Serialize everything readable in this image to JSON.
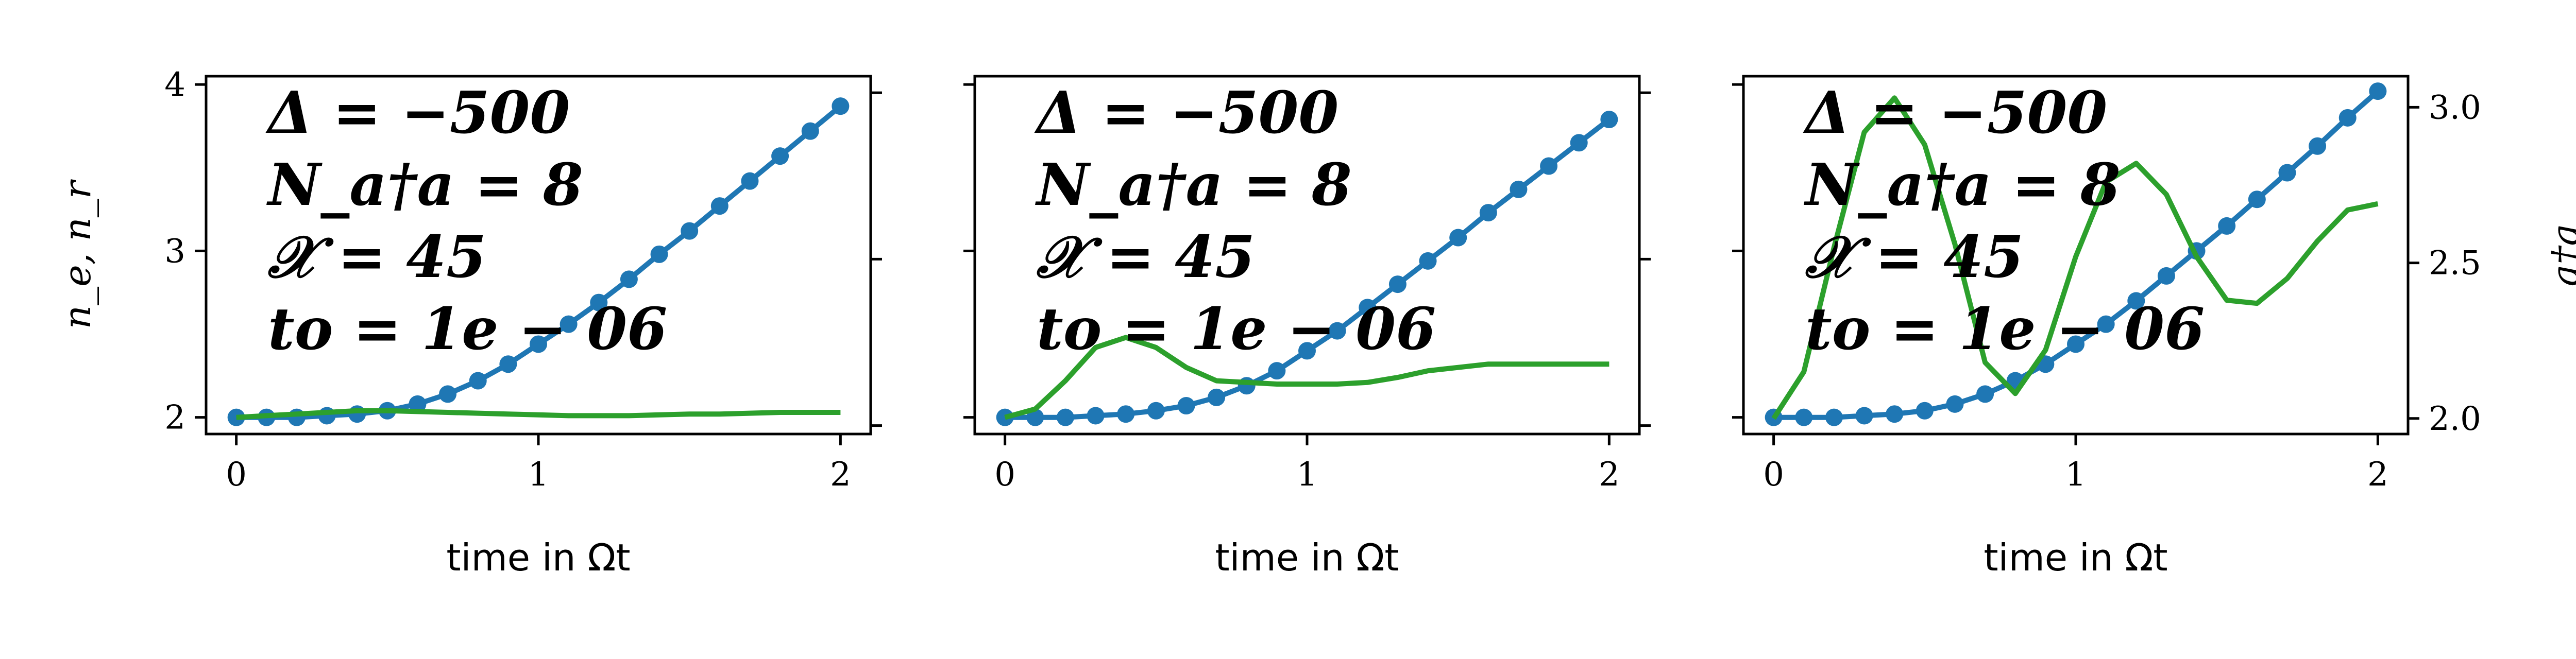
{
  "chart_data": [
    {
      "type": "line",
      "xlabel": "time in Ωt",
      "ylabel": "n_e, n_r",
      "xlim": [
        -0.1,
        2.1
      ],
      "ylim": [
        1.9,
        4.05
      ],
      "xticks": [
        "0",
        "1",
        "2"
      ],
      "yticks": [
        "2",
        "3",
        "4"
      ],
      "annotations": [
        "Δ = −500",
        "N_a†a = 8",
        "𝒳 = 45",
        "to = 1e − 06"
      ],
      "series": [
        {
          "color": "#1f77b4",
          "marker": "circle",
          "x": [
            0,
            0.1,
            0.2,
            0.3,
            0.4,
            0.5,
            0.6,
            0.7,
            0.8,
            0.9,
            1.0,
            1.1,
            1.2,
            1.3,
            1.4,
            1.5,
            1.6,
            1.7,
            1.8,
            1.9,
            2.0
          ],
          "y": [
            2.0,
            2.0,
            2.0,
            2.01,
            2.02,
            2.04,
            2.08,
            2.14,
            2.22,
            2.32,
            2.44,
            2.56,
            2.69,
            2.83,
            2.98,
            3.12,
            3.27,
            3.42,
            3.57,
            3.72,
            3.87
          ]
        },
        {
          "color": "#2ca02c",
          "x": [
            0,
            0.1,
            0.2,
            0.3,
            0.4,
            0.5,
            0.6,
            0.7,
            0.8,
            0.9,
            1.0,
            1.1,
            1.2,
            1.3,
            1.4,
            1.5,
            1.6,
            1.7,
            1.8,
            1.9,
            2.0
          ],
          "y": [
            2.0,
            2.01,
            2.02,
            2.03,
            2.04,
            2.04,
            2.035,
            2.03,
            2.025,
            2.02,
            2.015,
            2.01,
            2.01,
            2.01,
            2.015,
            2.02,
            2.02,
            2.025,
            2.03,
            2.03,
            2.03
          ]
        }
      ]
    },
    {
      "type": "line",
      "xlabel": "time in Ωt",
      "xlim": [
        -0.1,
        2.1
      ],
      "ylim": [
        1.9,
        4.05
      ],
      "xticks": [
        "0",
        "1",
        "2"
      ],
      "annotations": [
        "Δ = −500",
        "N_a†a = 8",
        "𝒳 = 45",
        "to = 1e − 06"
      ],
      "series": [
        {
          "color": "#1f77b4",
          "marker": "circle",
          "x": [
            0,
            0.1,
            0.2,
            0.3,
            0.4,
            0.5,
            0.6,
            0.7,
            0.8,
            0.9,
            1.0,
            1.1,
            1.2,
            1.3,
            1.4,
            1.5,
            1.6,
            1.7,
            1.8,
            1.9,
            2.0
          ],
          "y": [
            2.0,
            2.0,
            2.0,
            2.01,
            2.02,
            2.04,
            2.07,
            2.12,
            2.19,
            2.28,
            2.4,
            2.52,
            2.66,
            2.8,
            2.94,
            3.08,
            3.23,
            3.37,
            3.51,
            3.65,
            3.79
          ]
        },
        {
          "color": "#2ca02c",
          "x": [
            0,
            0.1,
            0.2,
            0.3,
            0.4,
            0.5,
            0.6,
            0.7,
            0.8,
            0.9,
            1.0,
            1.1,
            1.2,
            1.3,
            1.4,
            1.5,
            1.6,
            1.7,
            1.8,
            1.9,
            2.0
          ],
          "y": [
            2.0,
            2.05,
            2.22,
            2.42,
            2.48,
            2.42,
            2.3,
            2.22,
            2.21,
            2.2,
            2.2,
            2.2,
            2.21,
            2.24,
            2.28,
            2.3,
            2.32,
            2.32,
            2.32,
            2.32,
            2.32
          ]
        }
      ]
    },
    {
      "type": "line",
      "xlabel": "time in Ωt",
      "ylabel": "a†a",
      "ylabel_color": "#2ca02c",
      "xlim": [
        -0.1,
        2.1
      ],
      "ylim": [
        1.9,
        4.05
      ],
      "ylim_right": [
        1.95,
        3.1
      ],
      "xticks": [
        "0",
        "1",
        "2"
      ],
      "yticks_right": [
        "2.0",
        "2.5",
        "3.0"
      ],
      "annotations": [
        "Δ = −500",
        "N_a†a = 8",
        "𝒳 = 45",
        "to = 1e − 06"
      ],
      "series": [
        {
          "color": "#1f77b4",
          "marker": "circle",
          "axis": "left",
          "x": [
            0,
            0.1,
            0.2,
            0.3,
            0.4,
            0.5,
            0.6,
            0.7,
            0.8,
            0.9,
            1.0,
            1.1,
            1.2,
            1.3,
            1.4,
            1.5,
            1.6,
            1.7,
            1.8,
            1.9,
            2.0
          ],
          "y": [
            2.0,
            2.0,
            2.0,
            2.01,
            2.02,
            2.04,
            2.08,
            2.14,
            2.22,
            2.32,
            2.44,
            2.56,
            2.7,
            2.85,
            3.0,
            3.15,
            3.31,
            3.47,
            3.63,
            3.8,
            3.96
          ]
        },
        {
          "color": "#2ca02c",
          "axis": "right",
          "x": [
            0,
            0.1,
            0.2,
            0.3,
            0.4,
            0.5,
            0.6,
            0.7,
            0.8,
            0.9,
            1.0,
            1.1,
            1.2,
            1.3,
            1.4,
            1.5,
            1.6,
            1.7,
            1.8,
            1.9,
            2.0
          ],
          "y": [
            2.0,
            2.15,
            2.55,
            2.92,
            3.03,
            2.88,
            2.56,
            2.18,
            2.08,
            2.22,
            2.52,
            2.76,
            2.82,
            2.72,
            2.52,
            2.38,
            2.37,
            2.45,
            2.57,
            2.67,
            2.69
          ]
        }
      ]
    }
  ]
}
